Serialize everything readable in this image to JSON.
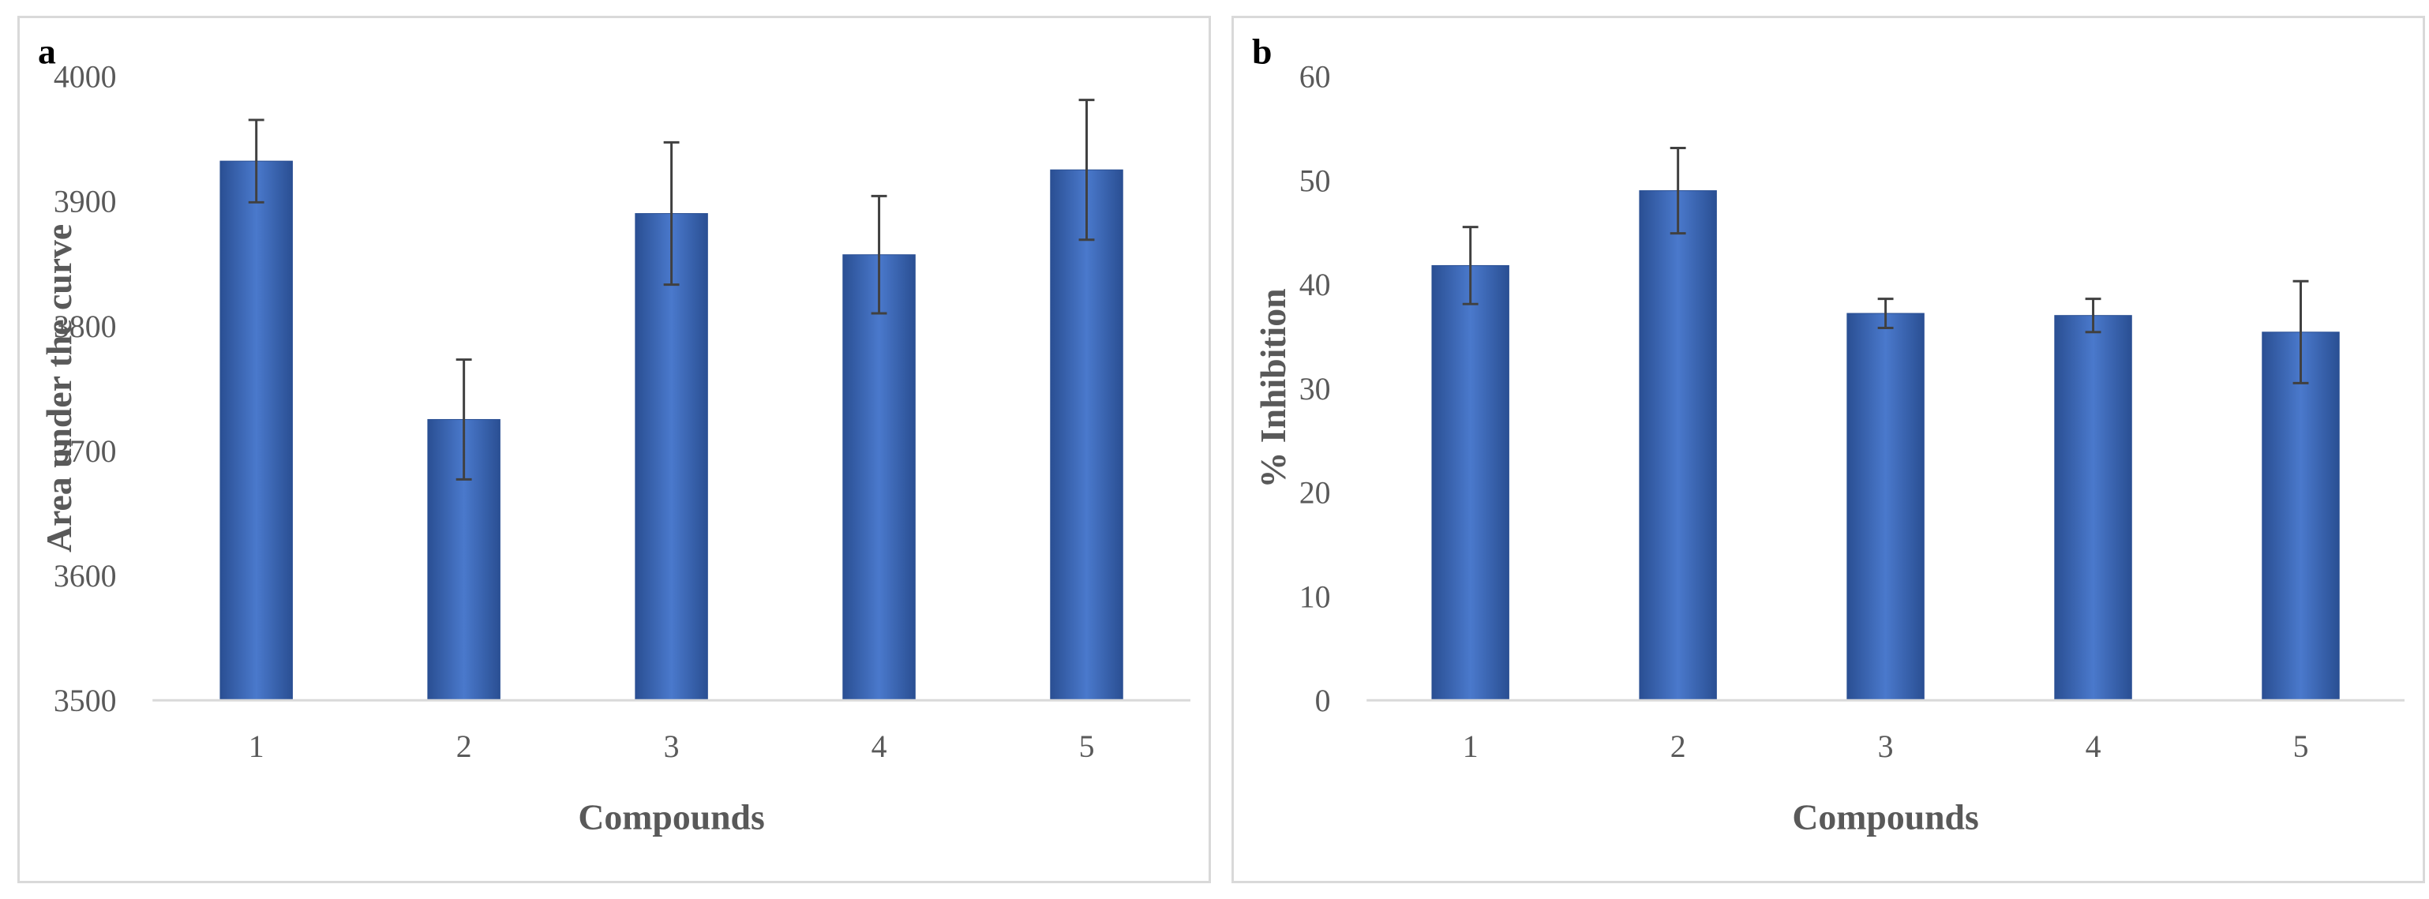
{
  "chart_data": [
    {
      "id": "panel-a",
      "panel_label": "a",
      "type": "bar",
      "categories": [
        "1",
        "2",
        "3",
        "4",
        "5"
      ],
      "values": [
        3932,
        3725,
        3890,
        3857,
        3925
      ],
      "error": [
        33,
        48,
        57,
        47,
        56
      ],
      "title": "",
      "xlabel": "Compounds",
      "ylabel": "Area under the curve",
      "ylim": [
        3500,
        4000
      ],
      "yticks": [
        3500,
        3600,
        3700,
        3800,
        3900,
        4000
      ],
      "grid": false,
      "legend": "none",
      "bar_color": "#4472c4"
    },
    {
      "id": "panel-b",
      "panel_label": "b",
      "type": "bar",
      "categories": [
        "1",
        "2",
        "3",
        "4",
        "5"
      ],
      "values": [
        41.8,
        49.0,
        37.2,
        37.0,
        35.4
      ],
      "error": [
        3.7,
        4.1,
        1.4,
        1.6,
        4.9
      ],
      "title": "",
      "xlabel": "Compounds",
      "ylabel": "% Inhibition",
      "ylim": [
        0,
        60
      ],
      "yticks": [
        0,
        10,
        20,
        30,
        40,
        50,
        60
      ],
      "grid": false,
      "legend": "none",
      "bar_color": "#4472c4"
    }
  ]
}
